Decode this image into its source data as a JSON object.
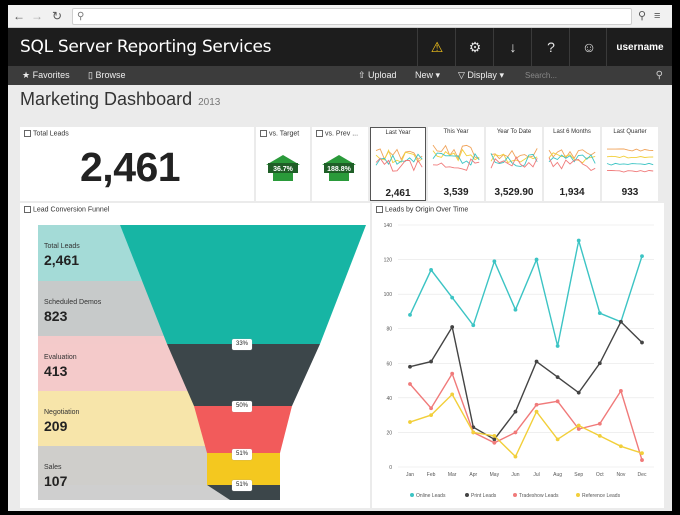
{
  "browser": {
    "url": ""
  },
  "ssrs": {
    "title": "SQL Server Reporting Services",
    "username": "username"
  },
  "toolbar": {
    "favorites": "Favorites",
    "browse": "Browse",
    "upload": "Upload",
    "new": "New",
    "display": "Display",
    "search_placeholder": "Search..."
  },
  "dashboard": {
    "title": "Marketing Dashboard",
    "year": "2013"
  },
  "kpis": {
    "total_leads": {
      "title": "Total Leads",
      "value": "2,461"
    },
    "vs_target": {
      "title": "vs. Target",
      "value": "36.7%"
    },
    "vs_prev": {
      "title": "vs. Prev ...",
      "value": "188.8%"
    }
  },
  "sparklines": [
    {
      "title": "Last Year",
      "value": "2,461"
    },
    {
      "title": "This Year",
      "value": "3,539"
    },
    {
      "title": "Year To Date",
      "value": "3,529.90"
    },
    {
      "title": "Last 6 Months",
      "value": "1,934"
    },
    {
      "title": "Last Quarter",
      "value": "933"
    }
  ],
  "funnel": {
    "title": "Lead Conversion Funnel",
    "stages": [
      {
        "label": "Total Leads",
        "value": "2,461",
        "color": "#9fd9d5"
      },
      {
        "label": "Scheduled Demos",
        "value": "823",
        "color": "#c9c9c9"
      },
      {
        "label": "Evaluation",
        "value": "413",
        "color": "#f6c9c9"
      },
      {
        "label": "Negotiation",
        "value": "209",
        "color": "#f7e6a8"
      },
      {
        "label": "Sales",
        "value": "107",
        "color": "#cccccc"
      }
    ],
    "percents": [
      "33%",
      "50%",
      "51%",
      "51%"
    ],
    "segment_colors": [
      "#17b5a4",
      "#3c464a",
      "#f25b5b",
      "#f4c81f",
      "#3c464a"
    ]
  },
  "chart_data": {
    "type": "line",
    "title": "Leads by Origin Over Time",
    "categories": [
      "Jan",
      "Feb",
      "Mar",
      "Apr",
      "May",
      "Jun",
      "Jul",
      "Aug",
      "Sep",
      "Oct",
      "Nov",
      "Dec"
    ],
    "ylim": [
      0,
      140
    ],
    "yticks": [
      0,
      20,
      40,
      60,
      80,
      100,
      120,
      140
    ],
    "grid": true,
    "legend_position": "bottom",
    "series": [
      {
        "name": "Online Leads",
        "color": "#3cc4c4",
        "values": [
          88,
          114,
          98,
          82,
          119,
          91,
          120,
          70,
          131,
          89,
          84,
          122
        ]
      },
      {
        "name": "Print Leads",
        "color": "#444444",
        "values": [
          58,
          61,
          81,
          23,
          16,
          32,
          61,
          52,
          43,
          60,
          84,
          72
        ]
      },
      {
        "name": "Tradeshow Leads",
        "color": "#f07a7a",
        "values": [
          48,
          34,
          54,
          20,
          14,
          20,
          36,
          38,
          22,
          25,
          44,
          4
        ]
      },
      {
        "name": "Reference Leads",
        "color": "#f2cf3a",
        "values": [
          26,
          30,
          42,
          20,
          18,
          6,
          32,
          16,
          24,
          18,
          12,
          8
        ]
      }
    ]
  }
}
